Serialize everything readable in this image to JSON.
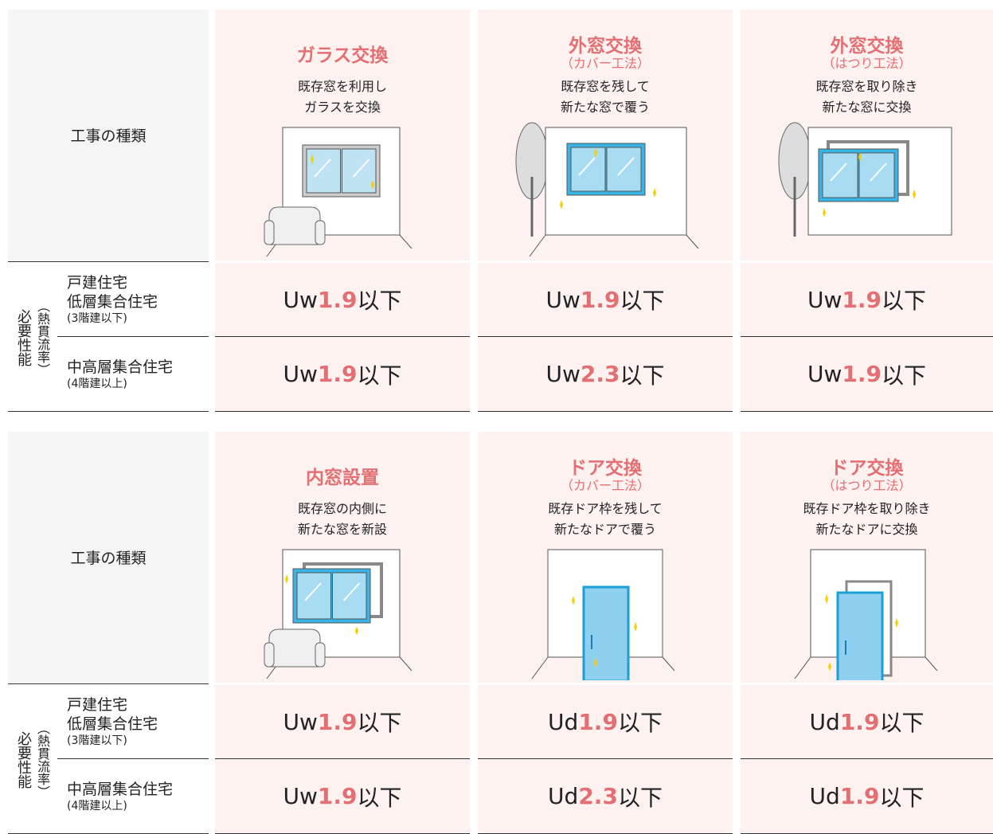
{
  "tables": [
    {
      "header_label": "工事の種類",
      "group_label": "必要性能",
      "group_sublabel": "（熱貫流率）",
      "columns": [
        {
          "title": "ガラス交換",
          "description": [
            "既存窓を利用し",
            "ガラスを交換"
          ]
        },
        {
          "title": "外窓交換",
          "subtitle": "（カバー工法）",
          "description": [
            "既存窓を残して",
            "新たな窓で覆う"
          ]
        },
        {
          "title": "外窓交換",
          "subtitle": "（はつり工法）",
          "description": [
            "既存窓を取り除き",
            "新たな窓に交換"
          ]
        }
      ],
      "rows": [
        {
          "label": [
            "戸建住宅",
            "低層集合住宅"
          ],
          "note": "(3階建以下)",
          "cells": [
            {
              "prefix": "Uw",
              "value": 1.9,
              "suffix": "以下"
            },
            {
              "prefix": "Uw",
              "value": 1.9,
              "suffix": "以下"
            },
            {
              "prefix": "Uw",
              "value": 1.9,
              "suffix": "以下"
            }
          ]
        },
        {
          "label": [
            "中高層集合住宅"
          ],
          "note": "(4階建以上)",
          "cells": [
            {
              "prefix": "Uw",
              "value": 1.9,
              "suffix": "以下"
            },
            {
              "prefix": "Uw",
              "value": 2.3,
              "suffix": "以下"
            },
            {
              "prefix": "Uw",
              "value": 1.9,
              "suffix": "以下"
            }
          ]
        }
      ]
    },
    {
      "header_label": "工事の種類",
      "group_label": "必要性能",
      "group_sublabel": "（熱貫流率）",
      "columns": [
        {
          "title": "内窓設置",
          "description": [
            "既存窓の内側に",
            "新たな窓を新設"
          ]
        },
        {
          "title": "ドア交換",
          "subtitle": "（カバー工法）",
          "description": [
            "既存ドア枠を残して",
            "新たなドアで覆う"
          ]
        },
        {
          "title": "ドア交換",
          "subtitle": "（はつり工法）",
          "description": [
            "既存ドア枠を取り除き",
            "新たなドアに交換"
          ]
        }
      ],
      "rows": [
        {
          "label": [
            "戸建住宅",
            "低層集合住宅"
          ],
          "note": "(3階建以下)",
          "cells": [
            {
              "prefix": "Uw",
              "value": 1.9,
              "suffix": "以下"
            },
            {
              "prefix": "Ud",
              "value": 1.9,
              "suffix": "以下"
            },
            {
              "prefix": "Ud",
              "value": 1.9,
              "suffix": "以下"
            }
          ]
        },
        {
          "label": [
            "中高層集合住宅"
          ],
          "note": "(4階建以上)",
          "cells": [
            {
              "prefix": "Uw",
              "value": 1.9,
              "suffix": "以下"
            },
            {
              "prefix": "Ud",
              "value": 2.3,
              "suffix": "以下"
            },
            {
              "prefix": "Ud",
              "value": 1.9,
              "suffix": "以下"
            }
          ]
        }
      ]
    }
  ]
}
